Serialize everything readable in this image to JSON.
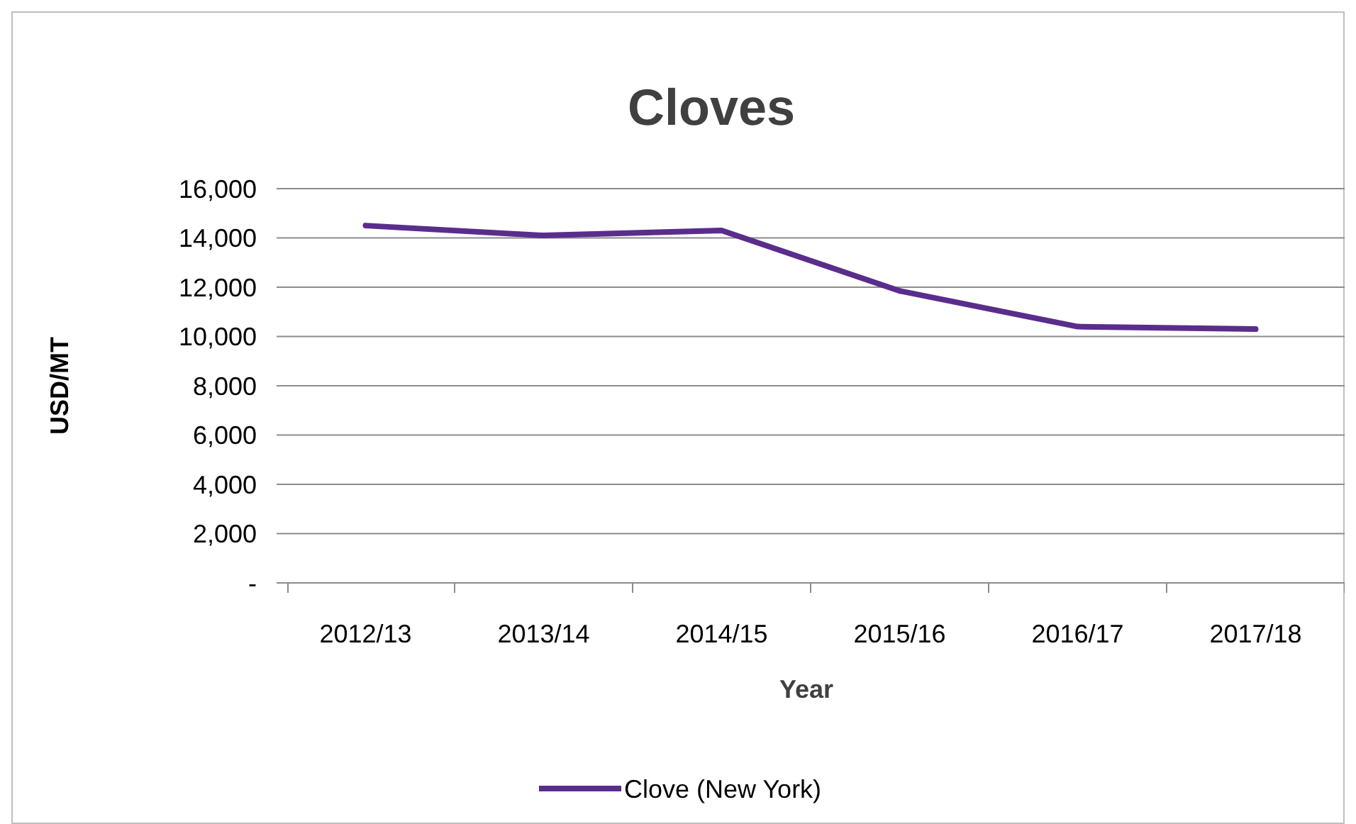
{
  "chart_data": {
    "type": "line",
    "title": "Cloves",
    "xlabel": "Year",
    "ylabel": "USD/MT",
    "categories": [
      "2012/13",
      "2013/14",
      "2014/15",
      "2015/16",
      "2016/17",
      "2017/18"
    ],
    "series": [
      {
        "name": "Clove (New York)",
        "color": "#5a2d8c",
        "values": [
          14500,
          14100,
          14300,
          11850,
          10400,
          10300
        ]
      }
    ],
    "ylim": [
      0,
      16000
    ],
    "yticks": [
      {
        "value": 0,
        "label": "-"
      },
      {
        "value": 2000,
        "label": "2,000"
      },
      {
        "value": 4000,
        "label": "4,000"
      },
      {
        "value": 6000,
        "label": "6,000"
      },
      {
        "value": 8000,
        "label": "8,000"
      },
      {
        "value": 10000,
        "label": "10,000"
      },
      {
        "value": 12000,
        "label": "12,000"
      },
      {
        "value": 14000,
        "label": "14,000"
      },
      {
        "value": 16000,
        "label": "16,000"
      }
    ],
    "grid": "y",
    "legend": "bottom",
    "marker": "none",
    "line_style": "solid"
  }
}
